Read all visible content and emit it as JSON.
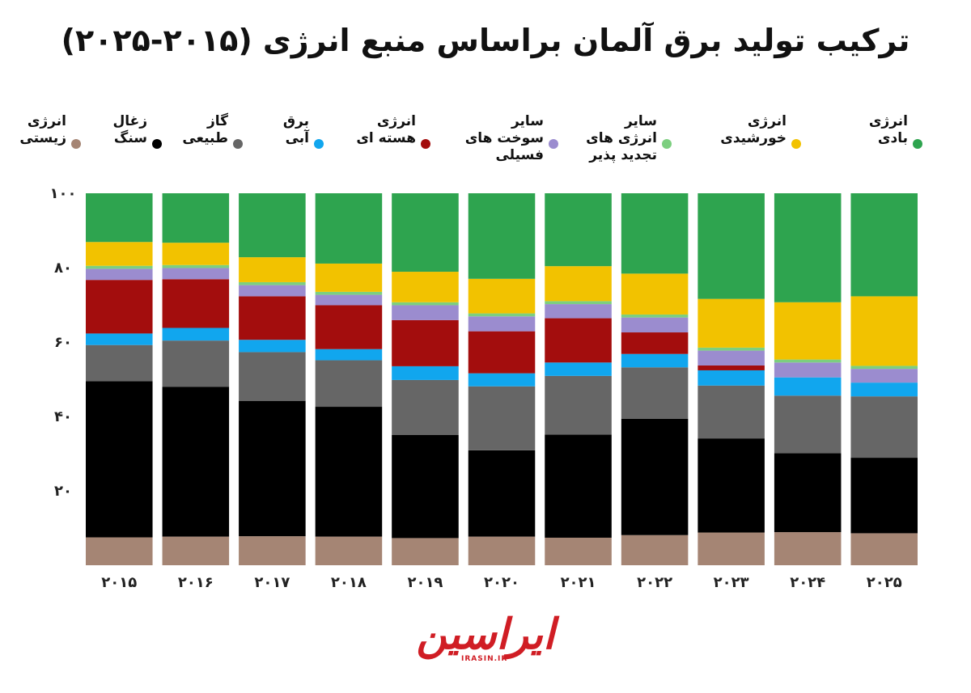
{
  "title": "ترکیب تولید برق آلمان براساس منبع انرژی (۲۰۱۵-۲۰۲۵)",
  "legend": [
    {
      "label": "انرژی\nبادی",
      "color": "#2ea44f"
    },
    {
      "label": "انرژی\nخورشیدی",
      "color": "#f2c200"
    },
    {
      "label": "سایر\nانرژی های\nتجدید پذیر",
      "color": "#7ccf7f"
    },
    {
      "label": "سایر\nسوخت های\nفسیلی",
      "color": "#9b8ccf"
    },
    {
      "label": "انرژی\nهسته ای",
      "color": "#a30d0d"
    },
    {
      "label": "برق\nآبی",
      "color": "#11a6ee"
    },
    {
      "label": "گاز\nطبیعی",
      "color": "#666666"
    },
    {
      "label": "زغال\nسنگ",
      "color": "#000000"
    },
    {
      "label": "انرژی\nزیستی",
      "color": "#a58574"
    }
  ],
  "chart_data": {
    "type": "bar",
    "stacked": true,
    "categories": [
      "۲۰۱۵",
      "۲۰۱۶",
      "۲۰۱۷",
      "۲۰۱۸",
      "۲۰۱۹",
      "۲۰۲۰",
      "۲۰۲۱",
      "۲۰۲۲",
      "۲۰۲۳",
      "۲۰۲۴",
      "۲۰۲۵"
    ],
    "ylim": [
      0,
      100
    ],
    "yticks": [
      20,
      40,
      60,
      80,
      100
    ],
    "ytick_labels": [
      "۲۰",
      "۴۰",
      "۶۰",
      "۸۰",
      "۱۰۰"
    ],
    "series": [
      {
        "name": "انرژی زیستی",
        "color": "#a58574",
        "values": [
          7.5,
          7.7,
          7.8,
          7.7,
          7.3,
          7.7,
          7.4,
          8.1,
          8.8,
          8.9,
          8.6
        ]
      },
      {
        "name": "زغال سنگ",
        "color": "#000000",
        "values": [
          42,
          40.3,
          36.4,
          34.9,
          27.7,
          23.2,
          27.7,
          31.3,
          25.3,
          21.2,
          20.3
        ]
      },
      {
        "name": "گاز طبیعی",
        "color": "#666666",
        "values": [
          9.7,
          12.4,
          13.1,
          12.5,
          14.8,
          17.2,
          15.8,
          13.8,
          14.2,
          15.5,
          16.5
        ]
      },
      {
        "name": "برق آبی",
        "color": "#11a6ee",
        "values": [
          3.1,
          3.4,
          3.3,
          3.0,
          3.7,
          3.5,
          3.6,
          3.6,
          4.1,
          4.9,
          3.7
        ]
      },
      {
        "name": "انرژی هسته ای",
        "color": "#a30d0d",
        "values": [
          14.4,
          13.1,
          11.7,
          11.8,
          12.4,
          11.3,
          11.9,
          5.8,
          1.3,
          0,
          0
        ]
      },
      {
        "name": "سایر سوخت های فسیلی",
        "color": "#9b8ccf",
        "values": [
          3.0,
          3.0,
          3.0,
          2.8,
          4.0,
          4.0,
          3.8,
          4.0,
          4.0,
          4.0,
          3.7
        ]
      },
      {
        "name": "سایر انرژی های تجدید پذیر",
        "color": "#7ccf7f",
        "values": [
          0.8,
          0.8,
          0.8,
          0.8,
          0.8,
          0.8,
          0.8,
          0.8,
          0.8,
          0.8,
          0.8
        ]
      },
      {
        "name": "انرژی خورشیدی",
        "color": "#f2c200",
        "values": [
          6.4,
          6.0,
          6.7,
          7.6,
          8.2,
          9.3,
          9.4,
          11.0,
          13.1,
          15.4,
          18.7
        ]
      },
      {
        "name": "انرژی بادی",
        "color": "#2ea44f",
        "values": [
          13.1,
          13.3,
          17.2,
          18.9,
          21.1,
          23.0,
          19.6,
          21.6,
          28.4,
          29.3,
          27.7
        ]
      }
    ]
  },
  "brand": {
    "name": "ایراسین",
    "url": "IRASIN.IR"
  }
}
